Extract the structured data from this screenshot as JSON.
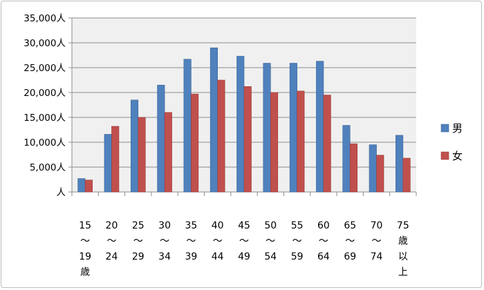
{
  "chart_data": {
    "type": "bar",
    "title": "",
    "xlabel": "",
    "ylabel": "",
    "ylim": [
      0,
      35000
    ],
    "y_ticks": [
      {
        "value": 35000,
        "label": "35,000人"
      },
      {
        "value": 30000,
        "label": "30,000人"
      },
      {
        "value": 25000,
        "label": "25,000人"
      },
      {
        "value": 20000,
        "label": "20,000人"
      },
      {
        "value": 15000,
        "label": "15,000人"
      },
      {
        "value": 10000,
        "label": "10,000人"
      },
      {
        "value": 5000,
        "label": "5,000人"
      },
      {
        "value": 0,
        "label": "人"
      }
    ],
    "categories": [
      [
        "15",
        "～",
        "19",
        "歳"
      ],
      [
        "20",
        "～",
        "24"
      ],
      [
        "25",
        "～",
        "29"
      ],
      [
        "30",
        "～",
        "34"
      ],
      [
        "35",
        "～",
        "39"
      ],
      [
        "40",
        "～",
        "44"
      ],
      [
        "45",
        "～",
        "49"
      ],
      [
        "50",
        "～",
        "54"
      ],
      [
        "55",
        "～",
        "59"
      ],
      [
        "60",
        "～",
        "64"
      ],
      [
        "65",
        "～",
        "69"
      ],
      [
        "70",
        "～",
        "74"
      ],
      [
        "75",
        "歳",
        "以",
        "上"
      ]
    ],
    "series": [
      {
        "name": "男",
        "color": "#4f81bd",
        "values": [
          2700,
          11600,
          18500,
          21500,
          26700,
          29000,
          27300,
          25900,
          25900,
          26300,
          13400,
          9500,
          11400
        ]
      },
      {
        "name": "女",
        "color": "#c0504d",
        "values": [
          2400,
          13200,
          15000,
          16000,
          19700,
          22500,
          21200,
          20000,
          20300,
          19500,
          9700,
          7400,
          6800
        ]
      }
    ],
    "grid": true,
    "legend_position": "right",
    "plot_background": "#f0f0f0"
  }
}
